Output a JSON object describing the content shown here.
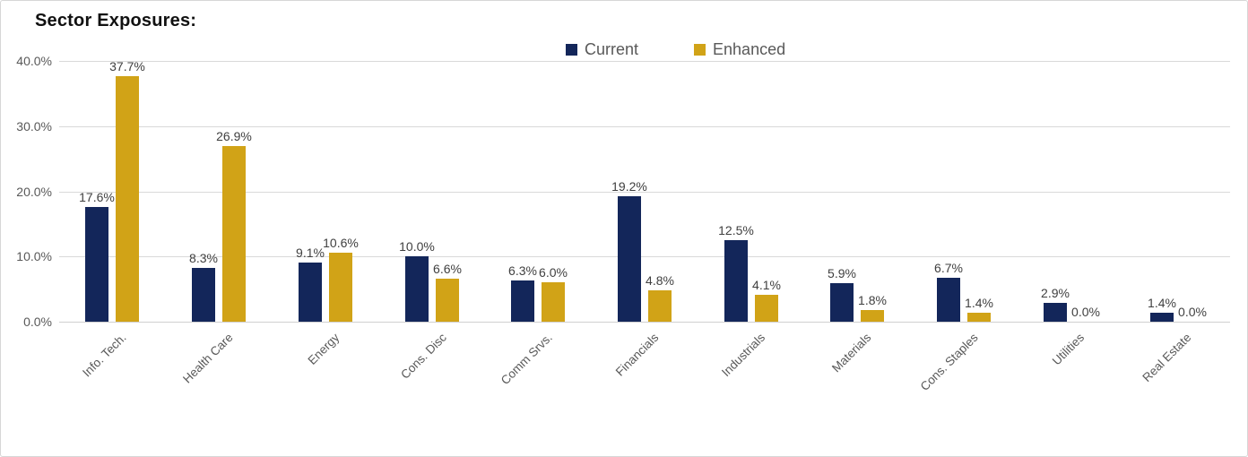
{
  "title": "Sector Exposures:",
  "colors": {
    "current": "#13265A",
    "enhanced": "#D1A317",
    "gridline": "#D9D9D9",
    "axis_text": "#595959",
    "data_label_text": "#404040",
    "title_text": "#111111"
  },
  "legend": {
    "items": [
      {
        "label": "Current"
      },
      {
        "label": "Enhanced"
      }
    ]
  },
  "chart_data": {
    "type": "bar",
    "title": "Sector Exposures:",
    "categories": [
      "Info. Tech.",
      "Health Care",
      "Energy",
      "Cons. Disc",
      "Comm Srvs.",
      "Financials",
      "Industrials",
      "Materials",
      "Cons. Staples",
      "Utilities",
      "Real Estate"
    ],
    "series": [
      {
        "name": "Current",
        "color": "#13265A",
        "values": [
          17.6,
          8.3,
          9.1,
          10.0,
          6.3,
          19.2,
          12.5,
          5.9,
          6.7,
          2.9,
          1.4
        ]
      },
      {
        "name": "Enhanced",
        "color": "#D1A317",
        "values": [
          37.7,
          26.9,
          10.6,
          6.6,
          6.0,
          4.8,
          4.1,
          1.8,
          1.4,
          0.0,
          0.0
        ]
      }
    ],
    "y_ticks": [
      "0.0%",
      "10.0%",
      "20.0%",
      "30.0%",
      "40.0%"
    ],
    "y_tick_values": [
      0,
      10,
      20,
      30,
      40
    ],
    "ylim": [
      0,
      40
    ],
    "xlabel": "",
    "ylabel": "",
    "grid": true,
    "legend_position": "top-center",
    "data_labels": true,
    "data_label_format": "0.0%"
  }
}
